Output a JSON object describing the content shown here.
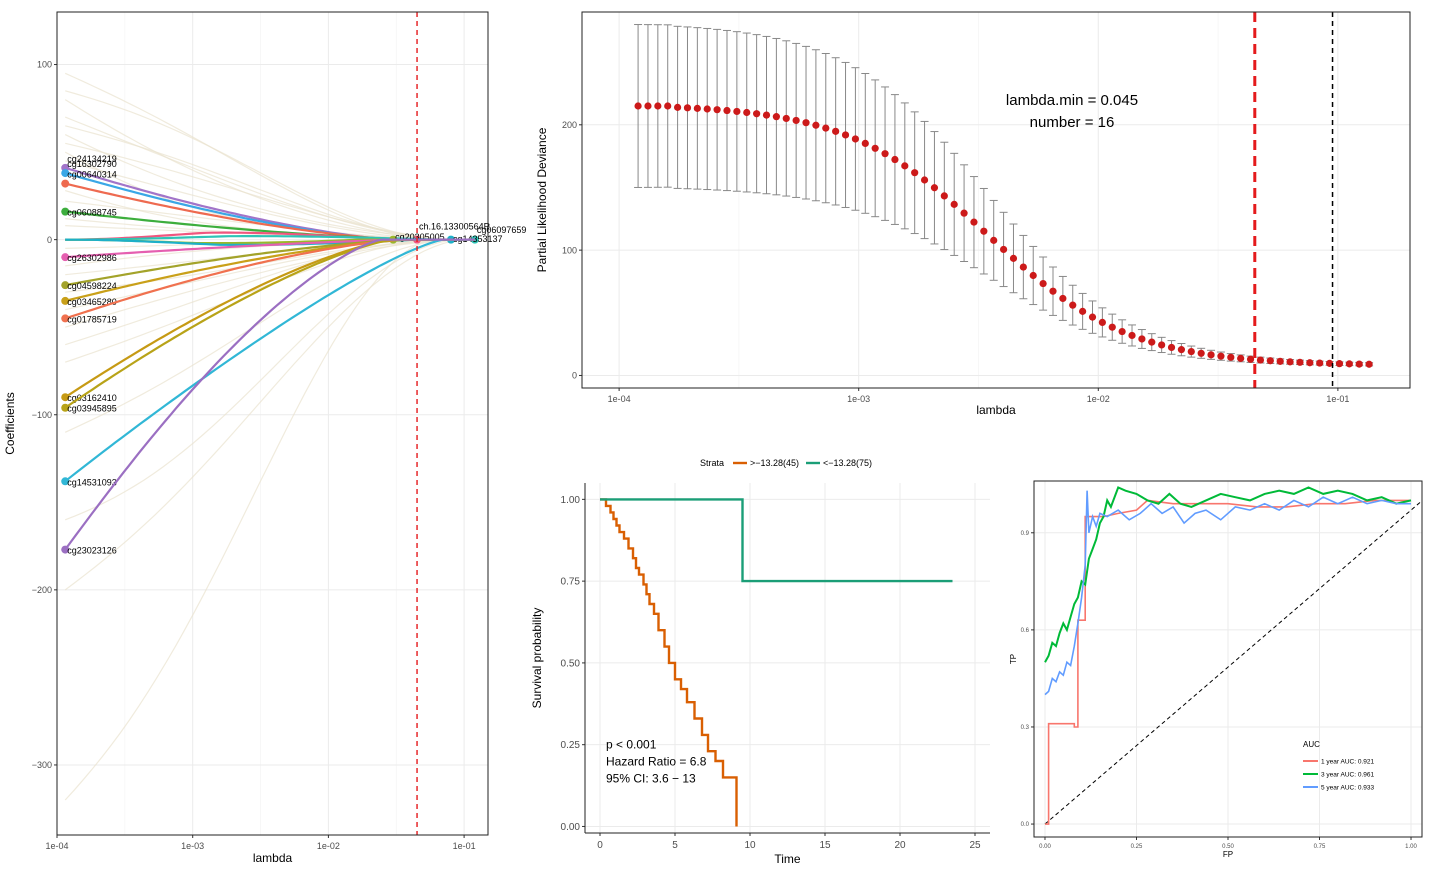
{
  "chart_data": [
    {
      "id": "coef",
      "type": "line",
      "xlabel": "lambda",
      "ylabel": "Coefficients",
      "x_scale": "log10",
      "xlim": [
        0.0001,
        0.15
      ],
      "ylim": [
        -340,
        130
      ],
      "x_ticks": [
        0.0001,
        0.001,
        0.01,
        0.1
      ],
      "x_tick_labels": [
        "1e-04",
        "1e-03",
        "1e-02",
        "1e-01"
      ],
      "y_ticks": [
        100,
        0,
        -100,
        -200,
        -300
      ],
      "y_tick_labels": [
        "100",
        "0",
        "−100",
        "−200",
        "−300"
      ],
      "vline": {
        "x": 0.045,
        "color": "#e41a1c",
        "style": "dashed"
      },
      "grid": true,
      "series": [
        {
          "name": "cg24134219",
          "color": "#a274c9",
          "start": 41,
          "mid": 10,
          "exit": 0.03
        },
        {
          "name": "cg16302790",
          "color": "#3aa7e6",
          "start": 38,
          "mid": 8,
          "exit": 0.03
        },
        {
          "name": "cg00640314",
          "color": "#ee6a50",
          "start": 32,
          "mid": 6,
          "exit": 0.035
        },
        {
          "name": "cg06088745",
          "color": "#3dae3d",
          "start": 16,
          "mid": 3,
          "exit": 0.05
        },
        {
          "name": "ch.16.13300564R",
          "color": "#f0567f",
          "start": 0,
          "mid": 4,
          "exit": 0.045
        },
        {
          "name": "cg06097659",
          "color": "#2ec4b6",
          "start": 0,
          "mid": 2,
          "exit": 0.12
        },
        {
          "name": "cg20305005",
          "color": "#9ab82a",
          "start": 0,
          "mid": -2,
          "exit": 0.03
        },
        {
          "name": "cg14353137",
          "color": "#1db0c8",
          "start": 0,
          "mid": -3,
          "exit": 0.08
        },
        {
          "name": "cg26302986",
          "color": "#e55fb0",
          "start": -10,
          "mid": -3,
          "exit": 0.04
        },
        {
          "name": "cg04598224",
          "color": "#a3a32a",
          "start": -26,
          "mid": -6,
          "exit": 0.04
        },
        {
          "name": "cg03465280",
          "color": "#c9a019",
          "start": -35,
          "mid": -8,
          "exit": 0.04
        },
        {
          "name": "cg01785719",
          "color": "#f0714f",
          "start": -45,
          "mid": -10,
          "exit": 0.035
        },
        {
          "name": "cg03162410",
          "color": "#c69a14",
          "start": -90,
          "mid": -25,
          "exit": 0.03
        },
        {
          "name": "cg03945895",
          "color": "#b8a318",
          "start": -96,
          "mid": -30,
          "exit": 0.03
        },
        {
          "name": "cg14531093",
          "color": "#31b7d6",
          "start": -138,
          "mid": -60,
          "exit": 0.07
        },
        {
          "name": "cg23023126",
          "color": "#9b6fc2",
          "start": -177,
          "mid": -40,
          "exit": 0.025
        }
      ]
    },
    {
      "id": "cv",
      "type": "scatter",
      "xlabel": "lambda",
      "ylabel": "Partial Likelihood Deviance",
      "x_scale": "log10",
      "xlim": [
        7e-05,
        0.2
      ],
      "ylim": [
        -10,
        290
      ],
      "x_ticks": [
        0.0001,
        0.001,
        0.01,
        0.1
      ],
      "x_tick_labels": [
        "1e-04",
        "1e-03",
        "1e-02",
        "1e-01"
      ],
      "y_ticks": [
        0,
        100,
        200
      ],
      "y_tick_labels": [
        "0",
        "100",
        "200"
      ],
      "lambda_range": [
        0.00012,
        0.135
      ],
      "n_points": 75,
      "deviance_start": 215,
      "deviance_floor": 8,
      "error_start": 65,
      "error_floor": 1,
      "vlines": [
        {
          "x": 0.045,
          "color": "#e41a1c",
          "style": "dashed"
        },
        {
          "x": 0.095,
          "color": "#000000",
          "style": "dashed"
        }
      ],
      "annotation": [
        "lambda.min = 0.045",
        "number = 16"
      ],
      "point_color": "#cc1a1a",
      "errorbar_color": "#888888"
    },
    {
      "id": "km",
      "type": "line",
      "xlabel": "Time",
      "ylabel": "Survival probability",
      "xlim": [
        -1,
        26
      ],
      "ylim": [
        -0.02,
        1.05
      ],
      "x_ticks": [
        0,
        5,
        10,
        15,
        20,
        25
      ],
      "y_ticks": [
        0,
        0.25,
        0.5,
        0.75,
        1
      ],
      "y_tick_labels": [
        "0.00",
        "0.25",
        "0.50",
        "0.75",
        "1.00"
      ],
      "legend_title": "Strata",
      "series": [
        {
          "name": ">−13.28(45)",
          "color": "#d95f02",
          "steps": [
            [
              0,
              1
            ],
            [
              0.4,
              0.98
            ],
            [
              0.7,
              0.96
            ],
            [
              0.9,
              0.94
            ],
            [
              1.1,
              0.92
            ],
            [
              1.3,
              0.9
            ],
            [
              1.6,
              0.88
            ],
            [
              1.9,
              0.85
            ],
            [
              2.2,
              0.82
            ],
            [
              2.4,
              0.79
            ],
            [
              2.6,
              0.77
            ],
            [
              2.9,
              0.74
            ],
            [
              3.1,
              0.71
            ],
            [
              3.3,
              0.68
            ],
            [
              3.6,
              0.65
            ],
            [
              3.9,
              0.6
            ],
            [
              4.3,
              0.55
            ],
            [
              4.6,
              0.5
            ],
            [
              5.0,
              0.45
            ],
            [
              5.4,
              0.42
            ],
            [
              5.8,
              0.38
            ],
            [
              6.3,
              0.33
            ],
            [
              6.8,
              0.28
            ],
            [
              7.2,
              0.23
            ],
            [
              7.7,
              0.2
            ],
            [
              8.2,
              0.15
            ],
            [
              9.1,
              0.0
            ]
          ],
          "end": 9.1
        },
        {
          "name": "<−13.28(75)",
          "color": "#1b9e77",
          "steps": [
            [
              0,
              1
            ],
            [
              9.5,
              0.75
            ]
          ],
          "end": 23.5
        }
      ],
      "annotation": [
        "p < 0.001",
        "Hazard Ratio = 6.8",
        "95% CI: 3.6 − 13"
      ]
    },
    {
      "id": "roc",
      "type": "line",
      "xlabel": "FP",
      "ylabel": "TP",
      "xlim": [
        -0.03,
        1.03
      ],
      "ylim": [
        -0.04,
        1.06
      ],
      "x_ticks": [
        0,
        0.25,
        0.5,
        0.75,
        1
      ],
      "x_tick_labels": [
        "0.00",
        "0.25",
        "0.50",
        "0.75",
        "1.00"
      ],
      "y_ticks": [
        0,
        0.3,
        0.6,
        0.9
      ],
      "y_tick_labels": [
        "0.0",
        "0.3",
        "0.6",
        "0.9"
      ],
      "legend_title": "AUC",
      "series": [
        {
          "name": "1 year AUC: 0.921",
          "color": "#f8766d",
          "points": [
            [
              0,
              0
            ],
            [
              0.01,
              0
            ],
            [
              0.01,
              0.31
            ],
            [
              0.08,
              0.31
            ],
            [
              0.08,
              0.3
            ],
            [
              0.09,
              0.3
            ],
            [
              0.09,
              0.63
            ],
            [
              0.11,
              0.63
            ],
            [
              0.11,
              0.95
            ],
            [
              0.16,
              0.95
            ],
            [
              0.2,
              0.96
            ],
            [
              0.25,
              0.97
            ],
            [
              0.28,
              1.0
            ],
            [
              0.35,
              0.99
            ],
            [
              0.42,
              0.99
            ],
            [
              0.5,
              0.99
            ],
            [
              0.58,
              0.98
            ],
            [
              0.66,
              0.98
            ],
            [
              0.74,
              0.99
            ],
            [
              0.82,
              0.99
            ],
            [
              0.9,
              1.0
            ],
            [
              0.96,
              1.0
            ],
            [
              1.0,
              1.0
            ]
          ]
        },
        {
          "name": "3 year AUC: 0.961",
          "color": "#00ba38",
          "points": [
            [
              0,
              0.5
            ],
            [
              0.01,
              0.52
            ],
            [
              0.02,
              0.56
            ],
            [
              0.03,
              0.55
            ],
            [
              0.04,
              0.59
            ],
            [
              0.05,
              0.62
            ],
            [
              0.06,
              0.6
            ],
            [
              0.07,
              0.64
            ],
            [
              0.08,
              0.68
            ],
            [
              0.09,
              0.7
            ],
            [
              0.1,
              0.75
            ],
            [
              0.11,
              0.74
            ],
            [
              0.12,
              0.82
            ],
            [
              0.13,
              0.85
            ],
            [
              0.14,
              0.88
            ],
            [
              0.15,
              0.93
            ],
            [
              0.16,
              0.95
            ],
            [
              0.17,
              1.0
            ],
            [
              0.18,
              0.98
            ],
            [
              0.2,
              1.04
            ],
            [
              0.22,
              1.03
            ],
            [
              0.25,
              1.02
            ],
            [
              0.28,
              1.0
            ],
            [
              0.31,
              0.99
            ],
            [
              0.34,
              1.02
            ],
            [
              0.37,
              0.99
            ],
            [
              0.4,
              0.98
            ],
            [
              0.44,
              1.0
            ],
            [
              0.48,
              1.02
            ],
            [
              0.52,
              1.01
            ],
            [
              0.56,
              1.0
            ],
            [
              0.6,
              1.02
            ],
            [
              0.64,
              1.03
            ],
            [
              0.68,
              1.02
            ],
            [
              0.72,
              1.04
            ],
            [
              0.76,
              1.02
            ],
            [
              0.8,
              1.03
            ],
            [
              0.84,
              1.02
            ],
            [
              0.88,
              1.0
            ],
            [
              0.92,
              1.01
            ],
            [
              0.96,
              0.99
            ],
            [
              1.0,
              1.0
            ]
          ]
        },
        {
          "name": "5 year AUC: 0.933",
          "color": "#619cff",
          "points": [
            [
              0,
              0.4
            ],
            [
              0.01,
              0.41
            ],
            [
              0.02,
              0.45
            ],
            [
              0.03,
              0.44
            ],
            [
              0.04,
              0.47
            ],
            [
              0.05,
              0.46
            ],
            [
              0.06,
              0.5
            ],
            [
              0.07,
              0.49
            ],
            [
              0.08,
              0.55
            ],
            [
              0.09,
              0.62
            ],
            [
              0.1,
              0.7
            ],
            [
              0.11,
              0.8
            ],
            [
              0.115,
              1.03
            ],
            [
              0.12,
              0.9
            ],
            [
              0.13,
              0.95
            ],
            [
              0.14,
              0.92
            ],
            [
              0.15,
              0.96
            ],
            [
              0.17,
              0.95
            ],
            [
              0.2,
              0.97
            ],
            [
              0.23,
              0.94
            ],
            [
              0.26,
              0.96
            ],
            [
              0.29,
              0.99
            ],
            [
              0.32,
              0.96
            ],
            [
              0.35,
              0.98
            ],
            [
              0.38,
              0.93
            ],
            [
              0.41,
              0.96
            ],
            [
              0.44,
              0.97
            ],
            [
              0.48,
              0.94
            ],
            [
              0.52,
              0.98
            ],
            [
              0.56,
              0.97
            ],
            [
              0.6,
              0.99
            ],
            [
              0.64,
              0.97
            ],
            [
              0.68,
              1.0
            ],
            [
              0.72,
              0.98
            ],
            [
              0.76,
              1.01
            ],
            [
              0.8,
              0.99
            ],
            [
              0.84,
              1.01
            ],
            [
              0.88,
              0.99
            ],
            [
              0.92,
              1.0
            ],
            [
              0.96,
              0.99
            ],
            [
              1.0,
              0.99
            ]
          ]
        }
      ]
    }
  ]
}
